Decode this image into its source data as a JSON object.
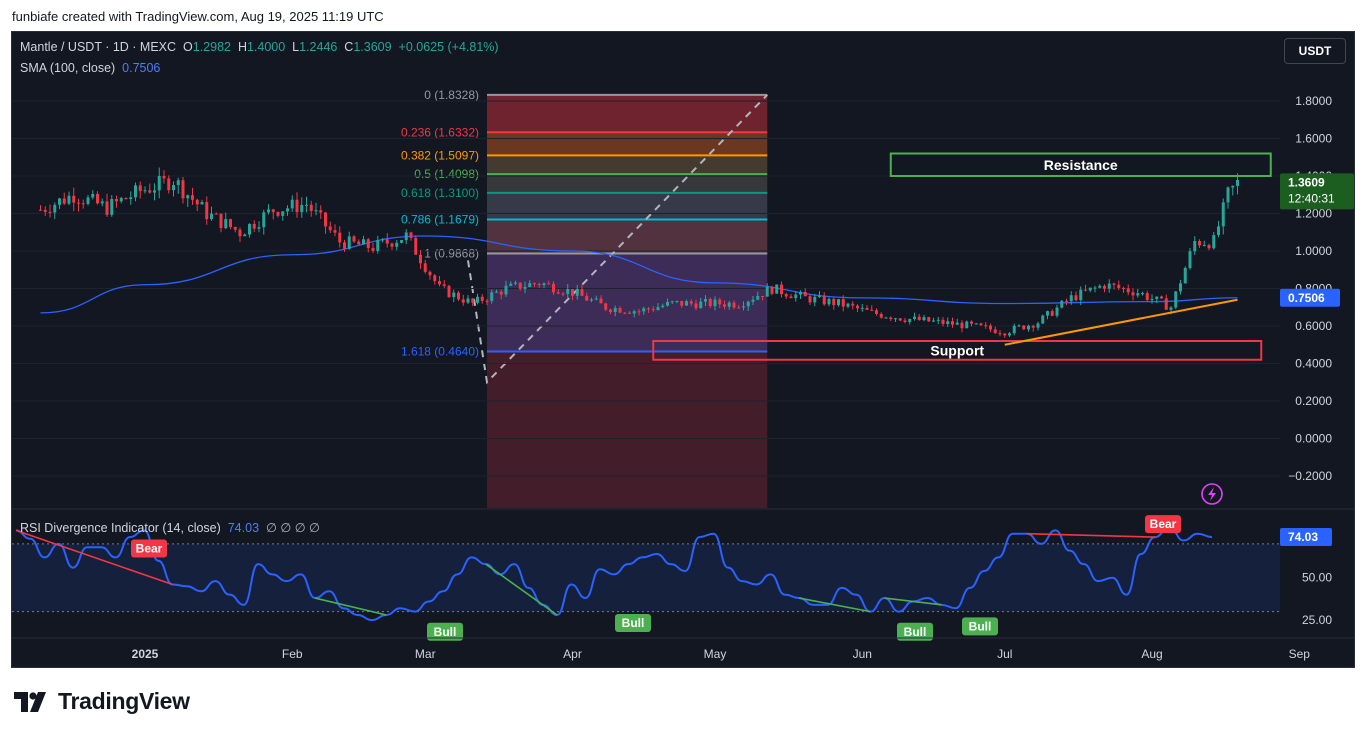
{
  "credit": "funbiafe created with TradingView.com, Aug 19, 2025 11:19 UTC",
  "header": {
    "symbol": "Mantle / USDT · 1D · MEXC",
    "o_label": "O",
    "o_value": "1.2982",
    "h_label": "H",
    "h_value": "1.4000",
    "l_label": "L",
    "l_value": "1.2446",
    "c_label": "C",
    "c_value": "1.3609",
    "change": "+0.0625 (+4.81%)",
    "sma_label": "SMA (100, close)",
    "sma_value": "0.7506"
  },
  "currency_button": "USDT",
  "rsi_header": {
    "label": "RSI Divergence Indicator (14, close)",
    "value": "74.03",
    "extras": "∅ ∅ ∅ ∅"
  },
  "logo": "TradingView",
  "colors": {
    "background": "#131722",
    "bull": "#26a69a",
    "bear": "#f23645",
    "sma": "#2962ff",
    "rsi": "#2962ff",
    "trendline": "#ff9800"
  },
  "chart_data": [
    {
      "type": "candlestick",
      "symbol": "MNT/USDT",
      "interval": "1D",
      "ylim": [
        -0.3,
        1.9
      ],
      "y_ticks": [
        "1.8000",
        "1.6000",
        "1.4000",
        "1.2000",
        "1.0000",
        "0.8000",
        "0.6000",
        "0.4000",
        "0.2000",
        "0.0000",
        "−0.2000"
      ],
      "x_ticks": [
        "2025",
        "Feb",
        "Mar",
        "Apr",
        "May",
        "Jun",
        "Jul",
        "Aug",
        "Sep"
      ],
      "last_price": "1.3609",
      "countdown": "12:40:31",
      "sma_label_value": "0.7506",
      "price_path": [
        {
          "date": "2024-12-10",
          "close": 1.22
        },
        {
          "date": "2024-12-17",
          "close": 1.3
        },
        {
          "date": "2024-12-24",
          "close": 1.23
        },
        {
          "date": "2024-12-31",
          "close": 1.32
        },
        {
          "date": "2025-01-07",
          "close": 1.38
        },
        {
          "date": "2025-01-14",
          "close": 1.2
        },
        {
          "date": "2025-01-21",
          "close": 1.1
        },
        {
          "date": "2025-01-28",
          "close": 1.22
        },
        {
          "date": "2025-02-04",
          "close": 1.25
        },
        {
          "date": "2025-02-11",
          "close": 1.05
        },
        {
          "date": "2025-02-18",
          "close": 1.02
        },
        {
          "date": "2025-02-25",
          "close": 1.08
        },
        {
          "date": "2025-03-04",
          "close": 0.8
        },
        {
          "date": "2025-03-11",
          "close": 0.72
        },
        {
          "date": "2025-03-18",
          "close": 0.8
        },
        {
          "date": "2025-03-25",
          "close": 0.83
        },
        {
          "date": "2025-04-01",
          "close": 0.78
        },
        {
          "date": "2025-04-08",
          "close": 0.7
        },
        {
          "date": "2025-04-15",
          "close": 0.68
        },
        {
          "date": "2025-04-22",
          "close": 0.72
        },
        {
          "date": "2025-04-29",
          "close": 0.72
        },
        {
          "date": "2025-05-06",
          "close": 0.72
        },
        {
          "date": "2025-05-13",
          "close": 0.8
        },
        {
          "date": "2025-05-20",
          "close": 0.75
        },
        {
          "date": "2025-05-27",
          "close": 0.72
        },
        {
          "date": "2025-06-03",
          "close": 0.67
        },
        {
          "date": "2025-06-10",
          "close": 0.64
        },
        {
          "date": "2025-06-17",
          "close": 0.62
        },
        {
          "date": "2025-06-24",
          "close": 0.6
        },
        {
          "date": "2025-07-01",
          "close": 0.57
        },
        {
          "date": "2025-07-08",
          "close": 0.62
        },
        {
          "date": "2025-07-15",
          "close": 0.75
        },
        {
          "date": "2025-07-22",
          "close": 0.82
        },
        {
          "date": "2025-07-29",
          "close": 0.78
        },
        {
          "date": "2025-08-05",
          "close": 0.7
        },
        {
          "date": "2025-08-10",
          "close": 1.05
        },
        {
          "date": "2025-08-14",
          "close": 1.05
        },
        {
          "date": "2025-08-17",
          "close": 1.3
        },
        {
          "date": "2025-08-19",
          "close": 1.3609
        }
      ],
      "sma_path": [
        {
          "date": "2024-12-10",
          "value": 0.67
        },
        {
          "date": "2025-01-01",
          "value": 0.82
        },
        {
          "date": "2025-02-01",
          "value": 0.98
        },
        {
          "date": "2025-03-01",
          "value": 1.08
        },
        {
          "date": "2025-04-01",
          "value": 1.0
        },
        {
          "date": "2025-05-01",
          "value": 0.83
        },
        {
          "date": "2025-06-01",
          "value": 0.75
        },
        {
          "date": "2025-07-01",
          "value": 0.72
        },
        {
          "date": "2025-08-01",
          "value": 0.73
        },
        {
          "date": "2025-08-19",
          "value": 0.7506
        }
      ],
      "fibonacci": {
        "levels": [
          {
            "label": "0 (1.8328)",
            "value": 1.8328,
            "color": "#9598a1"
          },
          {
            "label": "0.236 (1.6332)",
            "value": 1.6332,
            "color": "#f23645"
          },
          {
            "label": "0.382 (1.5097)",
            "value": 1.5097,
            "color": "#ff9800"
          },
          {
            "label": "0.5 (1.4098)",
            "value": 1.4098,
            "color": "#4caf50"
          },
          {
            "label": "0.618 (1.3100)",
            "value": 1.31,
            "color": "#089981"
          },
          {
            "label": "0.786 (1.1679)",
            "value": 1.1679,
            "color": "#00bcd4"
          },
          {
            "label": "1 (0.9868)",
            "value": 0.9868,
            "color": "#9598a1"
          },
          {
            "label": "1.618 (0.4640)",
            "value": 0.464,
            "color": "#2962ff"
          }
        ]
      },
      "zones": [
        {
          "label": "Resistance",
          "low": 1.4,
          "high": 1.52,
          "color": "#4caf50"
        },
        {
          "label": "Support",
          "low": 0.42,
          "high": 0.52,
          "color": "#f23645"
        }
      ],
      "trendline": {
        "from": {
          "date": "2025-07-01",
          "value": 0.5
        },
        "to": {
          "date": "2025-08-19",
          "value": 0.74
        }
      }
    },
    {
      "type": "line",
      "title": "RSI Divergence Indicator (14, close)",
      "ylim": [
        15,
        90
      ],
      "y_ticks": [
        "50.00",
        "25.00"
      ],
      "band": [
        30,
        70
      ],
      "last_value": "74.03",
      "values": [
        78,
        73,
        62,
        70,
        56,
        68,
        68,
        62,
        74,
        78,
        60,
        46,
        45,
        42,
        48,
        40,
        34,
        58,
        52,
        48,
        52,
        38,
        42,
        32,
        28,
        25,
        28,
        32,
        30,
        36,
        42,
        52,
        62,
        58,
        52,
        58,
        44,
        34,
        28,
        46,
        38,
        55,
        52,
        58,
        62,
        64,
        58,
        54,
        74,
        76,
        56,
        48,
        46,
        52,
        40,
        38,
        34,
        34,
        44,
        40,
        30,
        38,
        30,
        36,
        38,
        34,
        32,
        44,
        54,
        62,
        76,
        76,
        70,
        78,
        66,
        58,
        48,
        50,
        40,
        64,
        74,
        80,
        72,
        76,
        74
      ],
      "signals": [
        {
          "label": "Bear",
          "color": "#f23645"
        },
        {
          "label": "Bull",
          "color": "#4caf50"
        },
        {
          "label": "Bull",
          "color": "#4caf50"
        },
        {
          "label": "Bull",
          "color": "#4caf50"
        },
        {
          "label": "Bull",
          "color": "#4caf50"
        },
        {
          "label": "Bear",
          "color": "#f23645"
        }
      ]
    }
  ]
}
